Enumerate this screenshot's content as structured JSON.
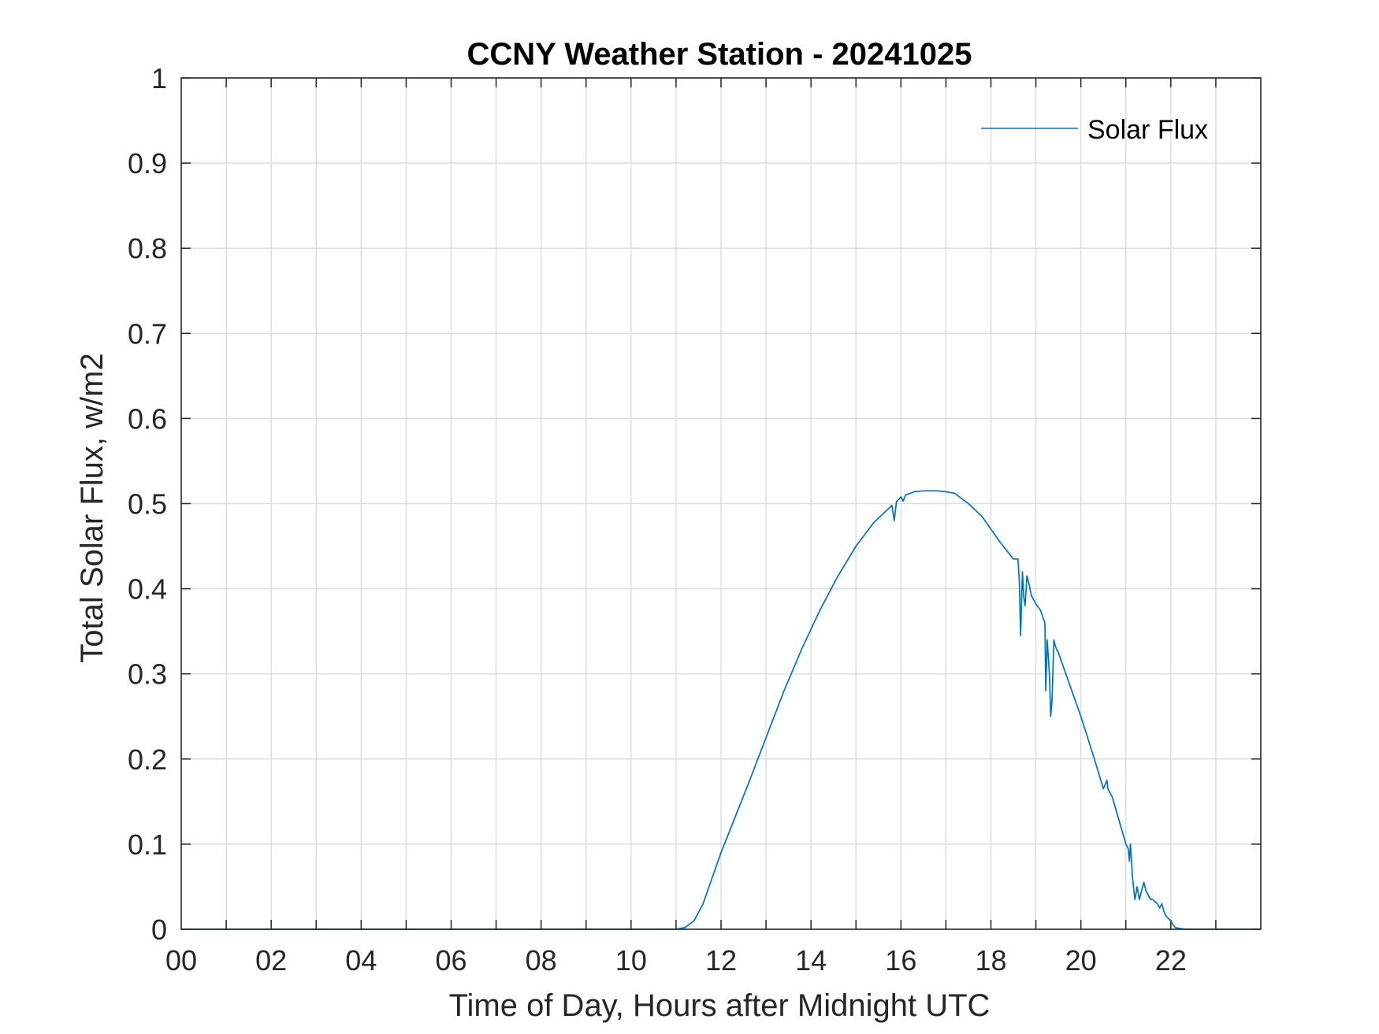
{
  "chart_data": {
    "type": "line",
    "title": "CCNY Weather Station - 20241025",
    "xlabel": "Time of Day, Hours after Midnight UTC",
    "ylabel": "Total Solar Flux, w/m2",
    "xlim": [
      0,
      24
    ],
    "ylim": [
      0,
      1
    ],
    "x_ticks": [
      0,
      2,
      4,
      6,
      8,
      10,
      12,
      14,
      16,
      18,
      20,
      22
    ],
    "x_tick_labels": [
      "00",
      "02",
      "04",
      "06",
      "08",
      "10",
      "12",
      "14",
      "16",
      "18",
      "20",
      "22"
    ],
    "y_ticks": [
      0,
      0.1,
      0.2,
      0.3,
      0.4,
      0.5,
      0.6,
      0.7,
      0.8,
      0.9,
      1
    ],
    "y_tick_labels": [
      "0",
      "0.1",
      "0.2",
      "0.3",
      "0.4",
      "0.5",
      "0.6",
      "0.7",
      "0.8",
      "0.9",
      "1"
    ],
    "grid": true,
    "minor_x_grid_step": 1,
    "legend_position": "top-right",
    "series": [
      {
        "name": "Solar Flux",
        "color": "#0072BD",
        "x": [
          0,
          11.0,
          11.2,
          11.4,
          11.6,
          11.8,
          12.0,
          12.3,
          12.6,
          13.0,
          13.4,
          13.8,
          14.2,
          14.6,
          15.0,
          15.4,
          15.8,
          15.85,
          15.9,
          16.0,
          16.05,
          16.1,
          16.2,
          16.3,
          16.5,
          16.8,
          17.0,
          17.2,
          17.3,
          17.5,
          17.8,
          18.0,
          18.2,
          18.5,
          18.6,
          18.63,
          18.66,
          18.7,
          18.73,
          18.76,
          18.8,
          18.85,
          18.9,
          19.0,
          19.1,
          19.2,
          19.22,
          19.25,
          19.3,
          19.33,
          19.36,
          19.4,
          19.42,
          19.45,
          19.5,
          19.7,
          20.0,
          20.3,
          20.5,
          20.58,
          20.6,
          20.65,
          20.7,
          21.0,
          21.05,
          21.08,
          21.1,
          21.12,
          21.15,
          21.2,
          21.22,
          21.25,
          21.3,
          21.35,
          21.4,
          21.45,
          21.5,
          21.55,
          21.6,
          21.7,
          21.75,
          21.8,
          21.85,
          21.9,
          22.0,
          22.05,
          22.1,
          22.2,
          22.3,
          22.5,
          24.0
        ],
        "y": [
          0,
          0,
          0.002,
          0.01,
          0.03,
          0.06,
          0.09,
          0.13,
          0.17,
          0.225,
          0.28,
          0.33,
          0.375,
          0.415,
          0.45,
          0.478,
          0.498,
          0.48,
          0.502,
          0.508,
          0.503,
          0.51,
          0.512,
          0.514,
          0.515,
          0.515,
          0.514,
          0.512,
          0.508,
          0.5,
          0.485,
          0.47,
          0.455,
          0.435,
          0.435,
          0.41,
          0.345,
          0.42,
          0.39,
          0.38,
          0.415,
          0.405,
          0.392,
          0.382,
          0.375,
          0.36,
          0.28,
          0.34,
          0.3,
          0.25,
          0.27,
          0.34,
          0.335,
          0.33,
          0.325,
          0.295,
          0.25,
          0.2,
          0.165,
          0.175,
          0.165,
          0.16,
          0.155,
          0.1,
          0.095,
          0.08,
          0.1,
          0.085,
          0.06,
          0.035,
          0.04,
          0.05,
          0.035,
          0.045,
          0.055,
          0.045,
          0.04,
          0.035,
          0.035,
          0.03,
          0.025,
          0.03,
          0.02,
          0.015,
          0.01,
          0.005,
          0.002,
          0.001,
          0,
          0,
          0
        ]
      }
    ]
  }
}
